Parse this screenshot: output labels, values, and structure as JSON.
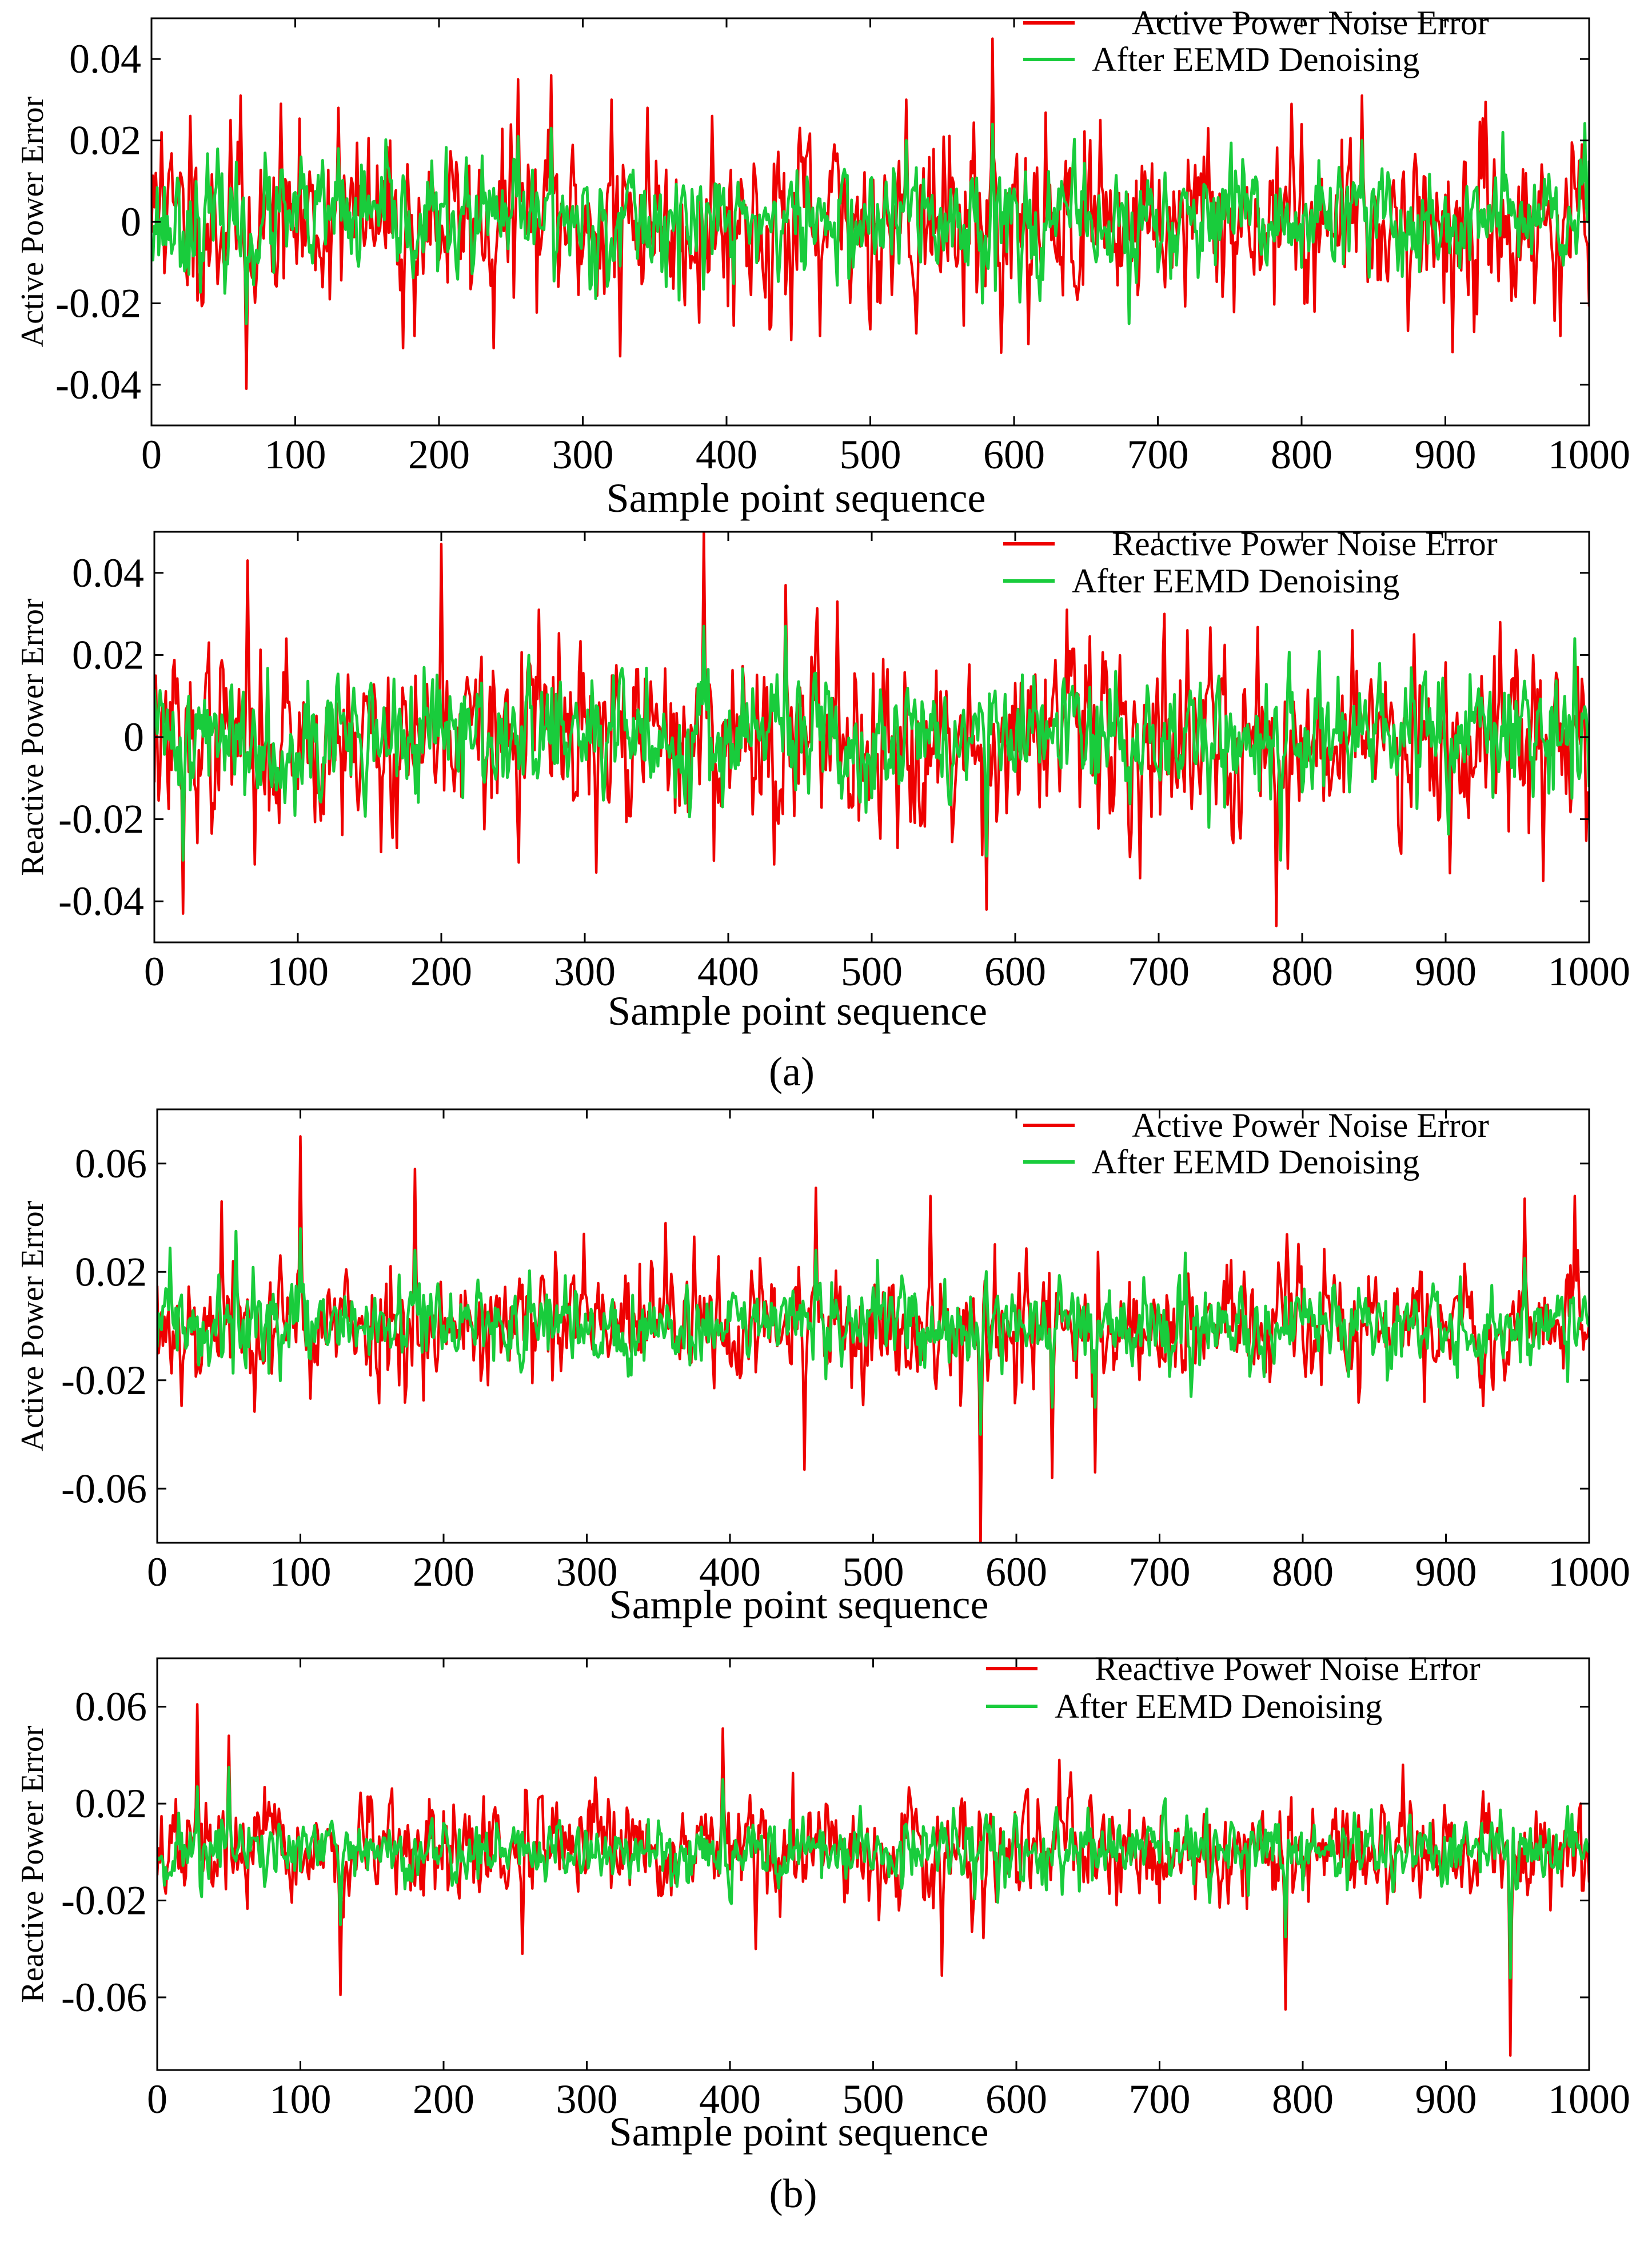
{
  "colors": {
    "noise": "#ee0000",
    "denoised": "#19cc3c",
    "axis": "#000000"
  },
  "chart_data": [
    {
      "type": "line",
      "panel": "(a) top",
      "title": "",
      "xlabel": "Sample point sequence",
      "ylabel": "Active Power Error",
      "xlim": [
        0,
        1000
      ],
      "ylim": [
        -0.05,
        0.05
      ],
      "xticks": [
        0,
        100,
        200,
        300,
        400,
        500,
        600,
        700,
        800,
        900,
        1000
      ],
      "xtick_labels": [
        "0",
        "100",
        "200",
        "300",
        "400",
        "500",
        "600",
        "700",
        "800",
        "900",
        "1000"
      ],
      "yticks": [
        0.04,
        0.02,
        0,
        -0.02,
        -0.04
      ],
      "ytick_labels": [
        "0.04",
        "0.02",
        "0",
        "-0.02",
        "-0.04"
      ],
      "legend": [
        "Active Power Noise Error",
        "After EEMD Denoising"
      ],
      "legend_position": "top-right",
      "series": [
        {
          "name": "Active Power Noise Error",
          "color": "#ee0000",
          "noise_std": 0.0095,
          "seed": 11,
          "peaks": [
            [
              3,
              0.012
            ],
            [
              7,
              0.022
            ],
            [
              27,
              0.026
            ],
            [
              55,
              0.025
            ],
            [
              62,
              0.031
            ],
            [
              66,
              -0.041
            ],
            [
              90,
              0.029
            ],
            [
              130,
              0.028
            ],
            [
              175,
              -0.031
            ],
            [
              183,
              -0.028
            ],
            [
              238,
              -0.031
            ],
            [
              255,
              0.035
            ],
            [
              278,
              0.036
            ],
            [
              320,
              0.03
            ],
            [
              326,
              -0.033
            ],
            [
              345,
              0.028
            ],
            [
              390,
              0.026
            ],
            [
              445,
              -0.029
            ],
            [
              465,
              -0.028
            ],
            [
              525,
              0.03
            ],
            [
              585,
              0.045
            ],
            [
              610,
              -0.03
            ],
            [
              660,
              0.025
            ],
            [
              735,
              0.023
            ],
            [
              800,
              0.024
            ],
            [
              842,
              0.031
            ],
            [
              905,
              -0.032
            ],
            [
              920,
              -0.027
            ],
            [
              980,
              -0.028
            ],
            [
              995,
              0.019
            ]
          ]
        },
        {
          "name": "After EEMD Denoising",
          "color": "#19cc3c",
          "noise_std": 0.0065,
          "seed": 23,
          "peaks": [
            [
              66,
              -0.025
            ],
            [
              130,
              0.018
            ],
            [
              255,
              0.021
            ],
            [
              278,
              0.023
            ],
            [
              525,
              0.02
            ],
            [
              585,
              0.024
            ],
            [
              680,
              -0.025
            ],
            [
              842,
              0.02
            ],
            [
              940,
              0.022
            ]
          ]
        }
      ]
    },
    {
      "type": "line",
      "panel": "(a) bottom",
      "title": "",
      "xlabel": "Sample point sequence",
      "ylabel": "Reactive Power Error",
      "xlim": [
        0,
        1000
      ],
      "ylim": [
        -0.05,
        0.05
      ],
      "xticks": [
        0,
        100,
        200,
        300,
        400,
        500,
        600,
        700,
        800,
        900,
        1000
      ],
      "xtick_labels": [
        "0",
        "100",
        "200",
        "300",
        "400",
        "500",
        "600",
        "700",
        "800",
        "900",
        "1000"
      ],
      "yticks": [
        0.04,
        0.02,
        0,
        -0.02,
        -0.04
      ],
      "ytick_labels": [
        "0.04",
        "0.02",
        "0",
        "-0.02",
        "-0.04"
      ],
      "legend": [
        "Reactive Power Noise Error",
        "After EEMD Denoising"
      ],
      "legend_position": "top-right",
      "caption": "(a)",
      "series": [
        {
          "name": "Reactive Power Noise Error",
          "color": "#ee0000",
          "noise_std": 0.01,
          "seed": 37,
          "peaks": [
            [
              20,
              -0.043
            ],
            [
              65,
              0.043
            ],
            [
              70,
              -0.031
            ],
            [
              92,
              0.024
            ],
            [
              158,
              -0.028
            ],
            [
              200,
              0.047
            ],
            [
              268,
              0.031
            ],
            [
              308,
              -0.033
            ],
            [
              383,
              0.05
            ],
            [
              432,
              -0.031
            ],
            [
              440,
              0.037
            ],
            [
              476,
              0.033
            ],
            [
              518,
              -0.027
            ],
            [
              580,
              -0.042
            ],
            [
              636,
              0.031
            ],
            [
              720,
              0.026
            ],
            [
              782,
              -0.046
            ],
            [
              790,
              -0.032
            ],
            [
              835,
              0.026
            ],
            [
              878,
              0.025
            ],
            [
              938,
              0.028
            ],
            [
              968,
              -0.035
            ]
          ]
        },
        {
          "name": "After EEMD Denoising",
          "color": "#19cc3c",
          "noise_std": 0.007,
          "seed": 41,
          "peaks": [
            [
              20,
              -0.03
            ],
            [
              383,
              0.027
            ],
            [
              440,
              0.027
            ],
            [
              580,
              -0.029
            ],
            [
              735,
              -0.022
            ],
            [
              785,
              -0.03
            ],
            [
              990,
              0.024
            ]
          ]
        }
      ]
    },
    {
      "type": "line",
      "panel": "(b) top",
      "title": "",
      "xlabel": "Sample point sequence",
      "ylabel": "Active Power Error",
      "xlim": [
        0,
        1000
      ],
      "ylim": [
        -0.08,
        0.08
      ],
      "xticks": [
        0,
        100,
        200,
        300,
        400,
        500,
        600,
        700,
        800,
        900,
        1000
      ],
      "xtick_labels": [
        "0",
        "100",
        "200",
        "300",
        "400",
        "500",
        "600",
        "700",
        "800",
        "900",
        "1000"
      ],
      "yticks": [
        0.06,
        0.02,
        -0.02,
        -0.06
      ],
      "ytick_labels": [
        "0.06",
        "0.02",
        "-0.02",
        "-0.06"
      ],
      "legend": [
        "Active Power Noise Error",
        "After EEMD Denoising"
      ],
      "legend_position": "top-right",
      "series": [
        {
          "name": "Active Power Noise Error",
          "color": "#ee0000",
          "noise_std": 0.0105,
          "seed": 53,
          "peaks": [
            [
              45,
              0.046
            ],
            [
              55,
              0.035
            ],
            [
              100,
              0.07
            ],
            [
              180,
              0.058
            ],
            [
              298,
              0.034
            ],
            [
              355,
              0.038
            ],
            [
              375,
              0.033
            ],
            [
              452,
              -0.053
            ],
            [
              460,
              0.051
            ],
            [
              540,
              0.048
            ],
            [
              575,
              -0.082
            ],
            [
              625,
              -0.056
            ],
            [
              655,
              -0.054
            ],
            [
              955,
              0.047
            ],
            [
              990,
              0.048
            ]
          ]
        },
        {
          "name": "After EEMD Denoising",
          "color": "#19cc3c",
          "noise_std": 0.007,
          "seed": 59,
          "peaks": [
            [
              55,
              0.035
            ],
            [
              100,
              0.036
            ],
            [
              180,
              0.028
            ],
            [
              460,
              0.028
            ],
            [
              575,
              -0.04
            ],
            [
              625,
              -0.03
            ],
            [
              655,
              -0.03
            ],
            [
              718,
              0.027
            ],
            [
              955,
              0.025
            ]
          ]
        }
      ]
    },
    {
      "type": "line",
      "panel": "(b) bottom",
      "title": "",
      "xlabel": "Sample point sequence",
      "ylabel": "Reactive Power Error",
      "xlim": [
        0,
        1000
      ],
      "ylim": [
        -0.09,
        0.08
      ],
      "xticks": [
        0,
        100,
        200,
        300,
        400,
        500,
        600,
        700,
        800,
        900,
        1000
      ],
      "xtick_labels": [
        "0",
        "100",
        "200",
        "300",
        "400",
        "500",
        "600",
        "700",
        "800",
        "900",
        "1000"
      ],
      "yticks": [
        0.06,
        0.02,
        -0.02,
        -0.06
      ],
      "ytick_labels": [
        "0.06",
        "0.02",
        "-0.02",
        "-0.06"
      ],
      "legend": [
        "Reactive Power Noise Error",
        "After EEMD Denoising"
      ],
      "legend_position": "top-right",
      "caption": "(b)",
      "series": [
        {
          "name": "Reactive Power Noise Error",
          "color": "#ee0000",
          "noise_std": 0.0095,
          "seed": 67,
          "peaks": [
            [
              28,
              0.061
            ],
            [
              50,
              0.048
            ],
            [
              128,
              -0.059
            ],
            [
              255,
              -0.042
            ],
            [
              395,
              0.051
            ],
            [
              418,
              -0.04
            ],
            [
              548,
              -0.051
            ],
            [
              630,
              0.038
            ],
            [
              788,
              -0.065
            ],
            [
              870,
              0.036
            ],
            [
              945,
              -0.084
            ]
          ]
        },
        {
          "name": "After EEMD Denoising",
          "color": "#19cc3c",
          "noise_std": 0.0065,
          "seed": 71,
          "peaks": [
            [
              28,
              0.027
            ],
            [
              50,
              0.035
            ],
            [
              128,
              -0.03
            ],
            [
              395,
              0.03
            ],
            [
              788,
              -0.035
            ],
            [
              945,
              -0.052
            ]
          ]
        }
      ]
    }
  ]
}
